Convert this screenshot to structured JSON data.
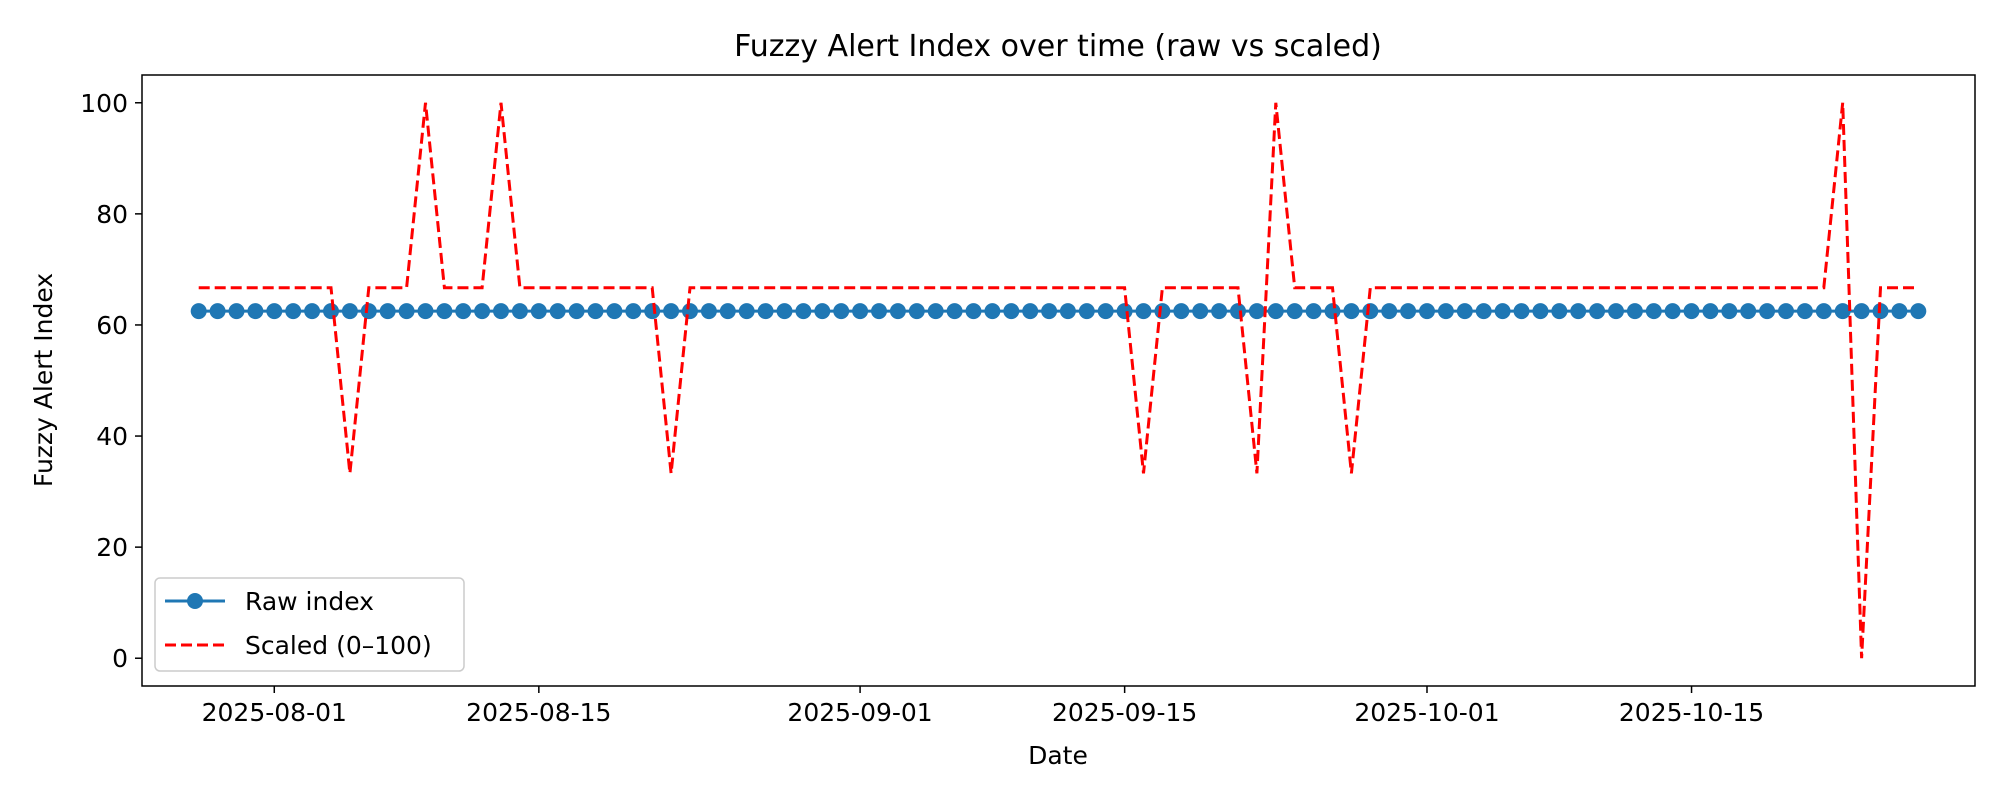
{
  "chart_data": {
    "type": "line",
    "title": "Fuzzy Alert Index over time (raw vs scaled)",
    "xlabel": "Date",
    "ylabel": "Fuzzy Alert Index",
    "x_start": "2025-07-28",
    "x_end": "2025-10-27",
    "xlim": [
      "2025-07-25",
      "2025-10-30"
    ],
    "ylim": [
      -5,
      105
    ],
    "x_ticks": [
      "2025-08-01",
      "2025-08-15",
      "2025-09-01",
      "2025-09-15",
      "2025-10-01",
      "2025-10-15"
    ],
    "y_ticks": [
      0,
      20,
      40,
      60,
      80,
      100
    ],
    "grid": false,
    "legend_position": "lower-left",
    "series": [
      {
        "name": "Raw index",
        "style": "line-with-circle-markers",
        "color": "#1f77b4",
        "constant_value": 62.5
      },
      {
        "name": "Scaled (0–100)",
        "style": "dashed",
        "color": "#ff0000",
        "baseline_value": 66.7,
        "deviations": [
          {
            "date": "2025-08-05",
            "value": 33.3
          },
          {
            "date": "2025-08-09",
            "value": 100
          },
          {
            "date": "2025-08-13",
            "value": 100
          },
          {
            "date": "2025-08-22",
            "value": 33.3
          },
          {
            "date": "2025-09-16",
            "value": 33.3
          },
          {
            "date": "2025-09-22",
            "value": 33.3
          },
          {
            "date": "2025-09-23",
            "value": 100
          },
          {
            "date": "2025-09-27",
            "value": 33.3
          },
          {
            "date": "2025-10-23",
            "value": 100
          },
          {
            "date": "2025-10-24",
            "value": 0
          }
        ]
      }
    ]
  }
}
